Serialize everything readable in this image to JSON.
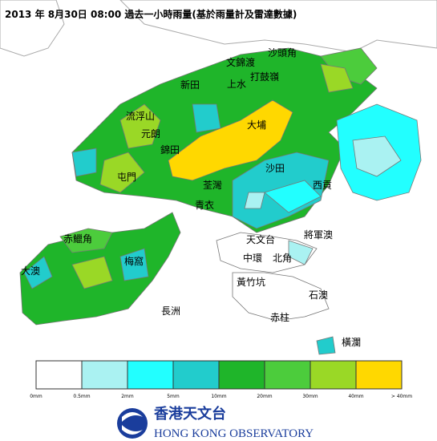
{
  "header": {
    "title": "2013 年  8月30日  08:00   過去一小時雨量(基於雨量計及雷達數據)"
  },
  "places": [
    "沙頭角",
    "文錦渡",
    "打鼓嶺",
    "上水",
    "新田",
    "流浮山",
    "元朗",
    "錦田",
    "大埔",
    "屯門",
    "荃灣",
    "沙田",
    "西貢",
    "青衣",
    "赤鱲角",
    "大澳",
    "梅窩",
    "長洲",
    "天文台",
    "將軍澳",
    "中環",
    "北角",
    "黃竹坑",
    "石澳",
    "赤柱",
    "橫瀾"
  ],
  "legend": {
    "colors": [
      "#ffffff",
      "#aaf2f2",
      "#22ffff",
      "#22cccc",
      "#1fb52a",
      "#4ccc3c",
      "#9ad826",
      "#ffd800"
    ],
    "labels": [
      "0mm",
      "0.5mm",
      "2mm",
      "5mm",
      "10mm",
      "20mm",
      "30mm",
      "40mm",
      "> 40mm"
    ]
  },
  "logo": {
    "chinese": "香港天文台",
    "english": "HONG KONG OBSERVATORY"
  }
}
